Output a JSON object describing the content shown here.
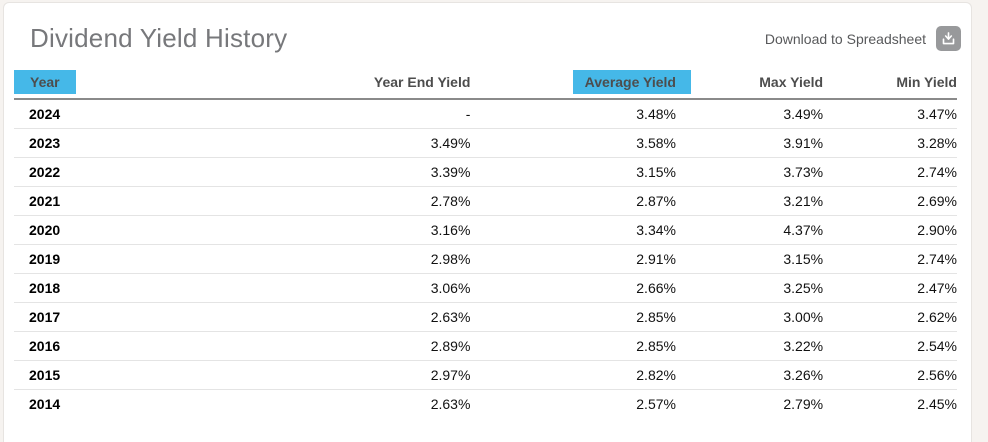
{
  "page": {
    "title": "Dividend Yield History",
    "download_label": "Download to Spreadsheet"
  },
  "colors": {
    "header_highlight": "#45b8e8",
    "title_text": "#77787b",
    "header_border": "#8a8a8a",
    "row_border": "#e4e4e4",
    "download_icon_bg": "#98999b"
  },
  "icons": {
    "download_icon": "download-arrow-into-tray"
  },
  "table": {
    "columns": [
      {
        "label": "Year",
        "highlighted": true
      },
      {
        "label": "Year End Yield",
        "highlighted": false
      },
      {
        "label": "Average Yield",
        "highlighted": true
      },
      {
        "label": "Max Yield",
        "highlighted": false
      },
      {
        "label": "Min Yield",
        "highlighted": false
      }
    ],
    "rows": [
      [
        "2024",
        "-",
        "3.48%",
        "3.49%",
        "3.47%"
      ],
      [
        "2023",
        "3.49%",
        "3.58%",
        "3.91%",
        "3.28%"
      ],
      [
        "2022",
        "3.39%",
        "3.15%",
        "3.73%",
        "2.74%"
      ],
      [
        "2021",
        "2.78%",
        "2.87%",
        "3.21%",
        "2.69%"
      ],
      [
        "2020",
        "3.16%",
        "3.34%",
        "4.37%",
        "2.90%"
      ],
      [
        "2019",
        "2.98%",
        "2.91%",
        "3.15%",
        "2.74%"
      ],
      [
        "2018",
        "3.06%",
        "2.66%",
        "3.25%",
        "2.47%"
      ],
      [
        "2017",
        "2.63%",
        "2.85%",
        "3.00%",
        "2.62%"
      ],
      [
        "2016",
        "2.89%",
        "2.85%",
        "3.22%",
        "2.54%"
      ],
      [
        "2015",
        "2.97%",
        "2.82%",
        "3.26%",
        "2.56%"
      ],
      [
        "2014",
        "2.63%",
        "2.57%",
        "2.79%",
        "2.45%"
      ]
    ]
  }
}
